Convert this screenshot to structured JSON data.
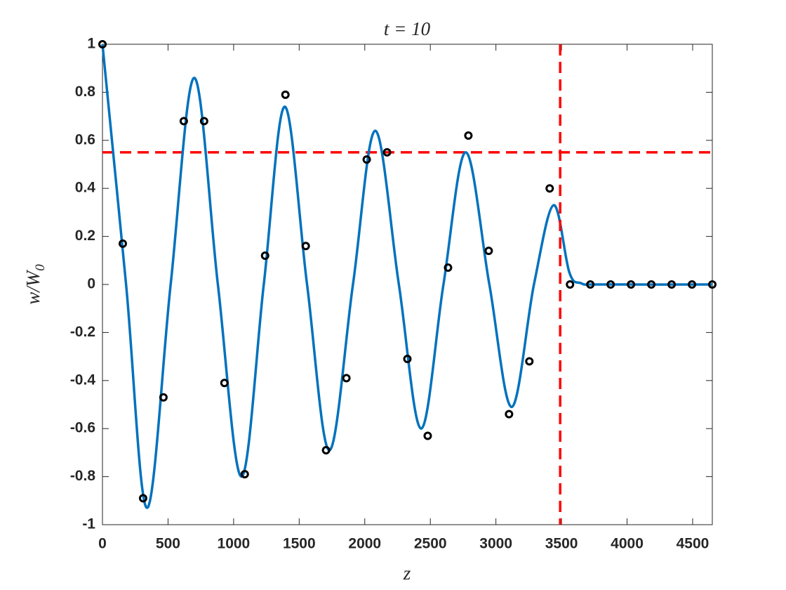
{
  "chart_data": {
    "type": "line",
    "title": "t = 10",
    "xlabel": "z",
    "ylabel": "w/W",
    "ylabel_subscript": "0",
    "xlim": [
      0,
      4650
    ],
    "ylim": [
      -1,
      1
    ],
    "xticks": [
      0,
      500,
      1000,
      1500,
      2000,
      2500,
      3000,
      3500,
      4000,
      4500
    ],
    "yticks": [
      -1,
      -0.8,
      -0.6,
      -0.4,
      -0.2,
      0,
      0.2,
      0.4,
      0.6,
      0.8,
      1
    ],
    "box": true,
    "series": [
      {
        "style": "line",
        "color": "#0072bd",
        "x": [
          0,
          180,
          340,
          520,
          700,
          880,
          1060,
          1230,
          1390,
          1560,
          1730,
          1910,
          2080,
          2260,
          2430,
          2600,
          2770,
          2950,
          3120,
          3290,
          3440,
          3560,
          3650,
          3800,
          4650
        ],
        "y": [
          1,
          0,
          -0.93,
          0,
          0.86,
          0,
          -0.8,
          0,
          0.74,
          0,
          -0.69,
          0,
          0.64,
          0,
          -0.6,
          0,
          0.55,
          0,
          -0.51,
          0,
          0.33,
          0.05,
          0.005,
          0,
          0
        ]
      },
      {
        "style": "markers",
        "color": "#000000",
        "x": [
          0,
          155,
          310,
          465,
          620,
          775,
          930,
          1085,
          1240,
          1395,
          1550,
          1705,
          1860,
          2015,
          2170,
          2325,
          2480,
          2635,
          2790,
          2945,
          3100,
          3255,
          3410,
          3565,
          3720,
          3875,
          4030,
          4185,
          4340,
          4495,
          4650
        ],
        "y": [
          1,
          0.17,
          -0.89,
          -0.47,
          0.68,
          0.68,
          -0.41,
          -0.79,
          0.12,
          0.79,
          0.16,
          -0.69,
          -0.39,
          0.52,
          0.55,
          -0.31,
          -0.63,
          0.07,
          0.62,
          0.14,
          -0.54,
          -0.32,
          0.4,
          0,
          0,
          0,
          0,
          0,
          0,
          0,
          0
        ]
      }
    ],
    "reference_lines": {
      "color": "#ff0000",
      "y": 0.55,
      "x": 3490
    }
  }
}
